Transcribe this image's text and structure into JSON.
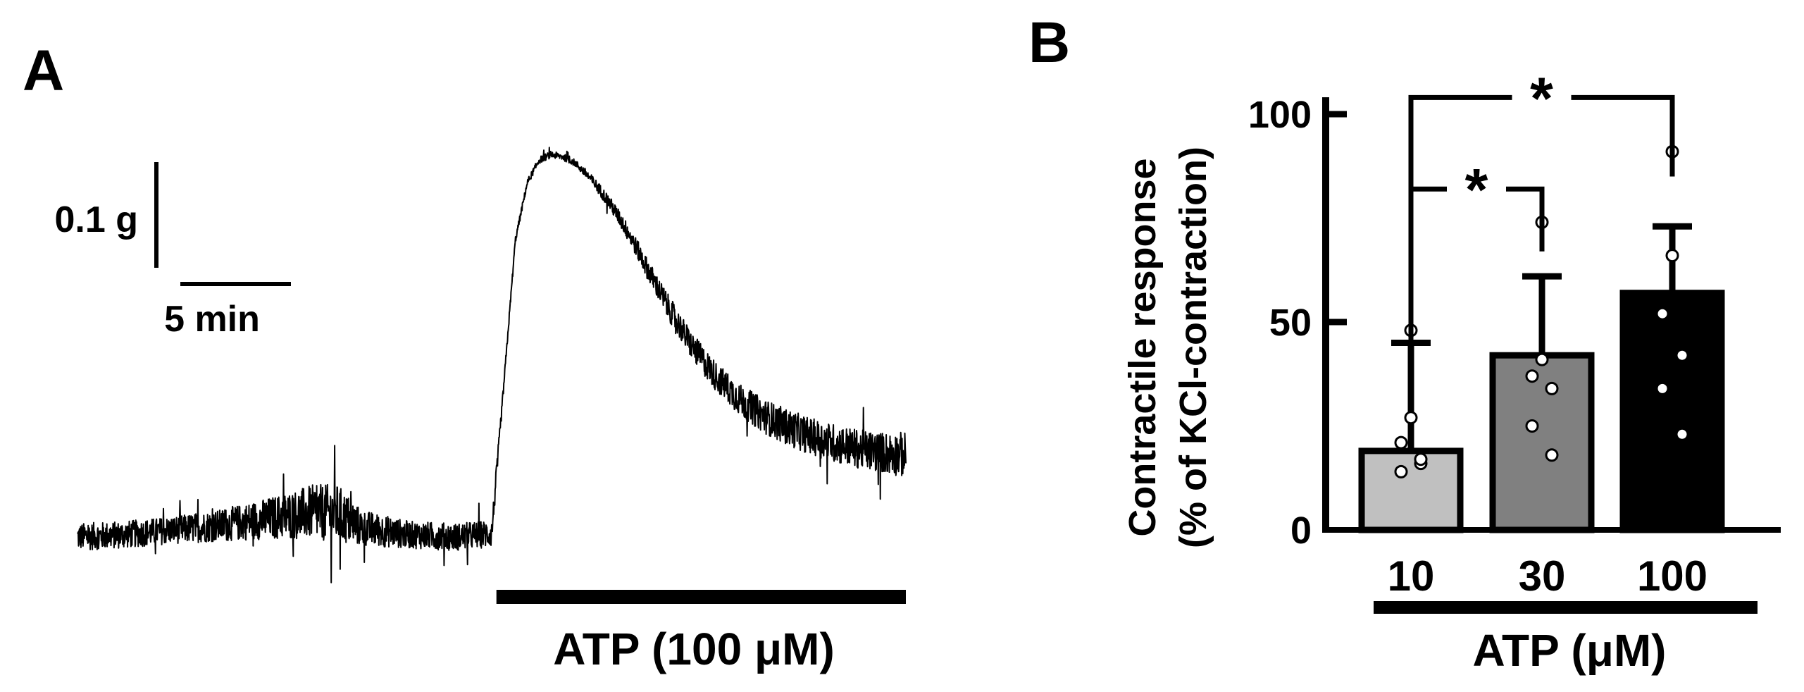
{
  "panels": {
    "a_letter": "A",
    "b_letter": "B"
  },
  "chart_data": [
    {
      "panel": "A",
      "type": "line",
      "title": "",
      "xlabel": "",
      "ylabel": "",
      "scale_bars": {
        "vertical_label": "0.1 g",
        "vertical_value_g": 0.1,
        "horizontal_label": "5 min",
        "horizontal_value_min": 5
      },
      "stimulus_bar": {
        "label": "ATP (100 μM)",
        "start_min": 17.7,
        "end_min": 35
      },
      "trace": {
        "x_min": [
          0,
          2,
          4,
          6,
          8,
          10,
          11,
          12,
          14,
          16,
          17.5,
          18.0,
          18.5,
          19.0,
          19.5,
          20.0,
          20.5,
          21.0,
          21.5,
          22.0,
          22.5,
          23.0,
          23.5,
          24.0,
          25,
          26,
          27,
          28,
          29,
          30,
          31,
          32,
          33,
          34,
          35
        ],
        "y_g": [
          0.0,
          0.002,
          0.006,
          0.01,
          0.016,
          0.022,
          0.02,
          0.008,
          0.002,
          0.0,
          0.003,
          0.13,
          0.26,
          0.31,
          0.33,
          0.335,
          0.333,
          0.328,
          0.318,
          0.306,
          0.292,
          0.276,
          0.258,
          0.238,
          0.2,
          0.166,
          0.14,
          0.12,
          0.106,
          0.096,
          0.088,
          0.082,
          0.077,
          0.074,
          0.072
        ],
        "noise_g": [
          0.012,
          0.012,
          0.012,
          0.014,
          0.018,
          0.024,
          0.026,
          0.016,
          0.012,
          0.012,
          0.012,
          0.004,
          0.003,
          0.003,
          0.003,
          0.003,
          0.003,
          0.003,
          0.004,
          0.005,
          0.006,
          0.007,
          0.008,
          0.009,
          0.011,
          0.012,
          0.013,
          0.014,
          0.015,
          0.016,
          0.016,
          0.017,
          0.017,
          0.018,
          0.02
        ]
      }
    },
    {
      "panel": "B",
      "type": "bar",
      "title": "",
      "ylabel_line1": "Contractile response",
      "ylabel_line2": "(% of KCl-contraction)",
      "xlabel": "ATP (μM)",
      "ylim": [
        0,
        100
      ],
      "yticks": [
        0,
        50,
        100
      ],
      "categories": [
        "10",
        "30",
        "100"
      ],
      "series": [
        {
          "values": [
            19,
            42,
            57
          ],
          "errors": [
            26,
            19,
            16
          ],
          "colors": [
            "#c0c0c0",
            "#808080",
            "#000000"
          ],
          "points": [
            [
              48,
              27,
              21,
              16,
              14,
              17
            ],
            [
              74,
              41,
              37,
              34,
              25,
              18
            ],
            [
              91,
              66,
              52,
              42,
              34,
              23
            ]
          ]
        }
      ],
      "significance": [
        {
          "from": "10",
          "to": "100",
          "label": "*",
          "y": 104
        },
        {
          "from": "10",
          "to": "30",
          "label": "*",
          "y": 82
        }
      ]
    }
  ]
}
